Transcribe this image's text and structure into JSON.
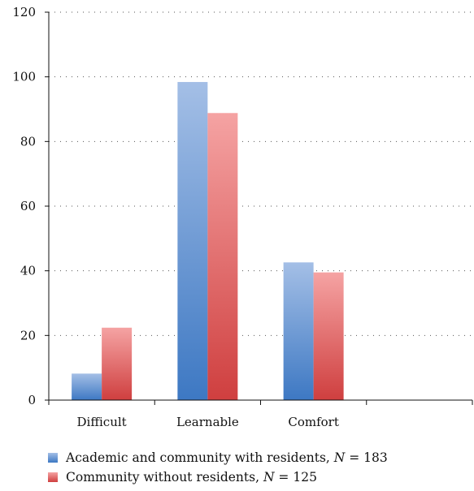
{
  "chart_data": {
    "type": "bar",
    "categories": [
      "Difficult",
      "Learnable",
      "Comfort",
      ""
    ],
    "series": [
      {
        "name": "Academic and community with residents, N = 183",
        "label_prefix": "Academic and community with residents, ",
        "label_var": "N",
        "label_suffix": " = 183",
        "values": [
          8.2,
          98.4,
          42.6,
          null
        ],
        "color_top": "#a4bfe6",
        "color_bottom": "#3d78c3"
      },
      {
        "name": "Community without residents, N = 125",
        "label_prefix": "Community without residents, ",
        "label_var": "N",
        "label_suffix": " = 125",
        "values": [
          22.4,
          88.8,
          39.5,
          null
        ],
        "color_top": "#f5a3a3",
        "color_bottom": "#cf3f3f"
      }
    ],
    "yticks": [
      "0",
      "20",
      "40",
      "60",
      "80",
      "100",
      "120"
    ],
    "ylim": [
      0,
      120
    ],
    "grid": "dotted horizontal",
    "legend_position": "bottom"
  }
}
